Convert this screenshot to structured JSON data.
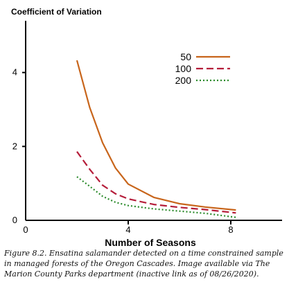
{
  "chart_data": {
    "type": "line",
    "ylabel": "Coefficient of Variation",
    "xlabel": "Number of Seasons",
    "xlim": [
      0,
      10
    ],
    "ylim": [
      0,
      5.4
    ],
    "x_ticks": [
      0,
      4,
      8
    ],
    "y_ticks": [
      0,
      2,
      4
    ],
    "grid": false,
    "legend_position": "top-right",
    "series": [
      {
        "name": "50",
        "color": "#c8651b",
        "dash": "solid",
        "x": [
          2,
          2.5,
          3,
          3.5,
          4,
          5,
          6,
          7,
          8.2
        ],
        "y": [
          4.33,
          3.05,
          2.1,
          1.42,
          0.98,
          0.62,
          0.45,
          0.36,
          0.28
        ]
      },
      {
        "name": "100",
        "color": "#b51d3a",
        "dash": "dashed",
        "x": [
          2,
          2.5,
          3,
          3.5,
          4,
          5,
          6,
          7,
          8.2
        ],
        "y": [
          1.86,
          1.38,
          0.95,
          0.72,
          0.58,
          0.43,
          0.35,
          0.29,
          0.2
        ]
      },
      {
        "name": "200",
        "color": "#2a8a2a",
        "dash": "dotted",
        "x": [
          2,
          2.5,
          3,
          3.5,
          4,
          5,
          6,
          7,
          8.2
        ],
        "y": [
          1.18,
          0.92,
          0.65,
          0.49,
          0.4,
          0.31,
          0.25,
          0.19,
          0.08
        ]
      }
    ]
  },
  "caption": "Figure 8.2. Ensatina salamander detected on a time constrained sample in managed forests of the Oregon Cascades. Image available via The Marion County Parks department (inactive link as of 08/26/2020)."
}
